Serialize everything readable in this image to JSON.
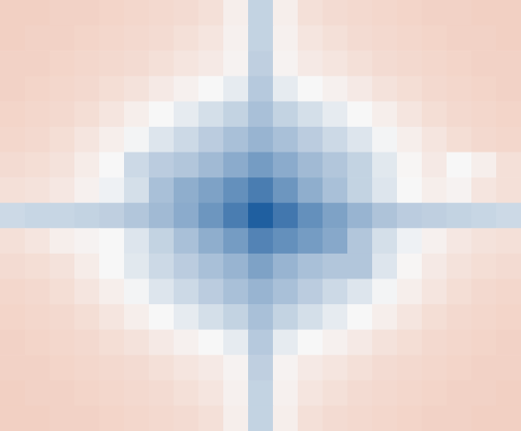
{
  "chart_data": {
    "type": "heatmap",
    "tick_labels": false,
    "xlim": [
      0,
      21
    ],
    "ylim": [
      0,
      17
    ],
    "cells": [
      [
        0.33,
        0.33,
        0.34,
        0.34,
        0.35,
        0.36,
        0.37,
        0.38,
        0.4,
        0.46,
        0.62,
        0.46,
        0.4,
        0.38,
        0.37,
        0.36,
        0.35,
        0.34,
        0.34,
        0.33,
        0.33
      ],
      [
        0.33,
        0.34,
        0.34,
        0.35,
        0.36,
        0.37,
        0.38,
        0.4,
        0.42,
        0.47,
        0.62,
        0.47,
        0.42,
        0.4,
        0.38,
        0.37,
        0.36,
        0.35,
        0.34,
        0.34,
        0.33
      ],
      [
        0.34,
        0.34,
        0.35,
        0.36,
        0.37,
        0.38,
        0.4,
        0.42,
        0.44,
        0.48,
        0.63,
        0.48,
        0.44,
        0.42,
        0.4,
        0.38,
        0.37,
        0.36,
        0.35,
        0.34,
        0.34
      ],
      [
        0.34,
        0.35,
        0.36,
        0.37,
        0.39,
        0.41,
        0.44,
        0.47,
        0.5,
        0.54,
        0.65,
        0.54,
        0.5,
        0.47,
        0.44,
        0.41,
        0.39,
        0.37,
        0.36,
        0.35,
        0.34
      ],
      [
        0.35,
        0.36,
        0.37,
        0.39,
        0.42,
        0.46,
        0.5,
        0.54,
        0.58,
        0.62,
        0.68,
        0.62,
        0.58,
        0.54,
        0.5,
        0.46,
        0.42,
        0.39,
        0.37,
        0.36,
        0.35
      ],
      [
        0.36,
        0.37,
        0.39,
        0.42,
        0.46,
        0.51,
        0.56,
        0.6,
        0.64,
        0.68,
        0.72,
        0.68,
        0.64,
        0.6,
        0.56,
        0.51,
        0.46,
        0.42,
        0.39,
        0.37,
        0.36
      ],
      [
        0.38,
        0.39,
        0.41,
        0.45,
        0.5,
        0.6,
        0.64,
        0.66,
        0.7,
        0.75,
        0.8,
        0.75,
        0.7,
        0.66,
        0.62,
        0.55,
        0.49,
        0.44,
        0.5,
        0.46,
        0.4
      ],
      [
        0.4,
        0.41,
        0.43,
        0.47,
        0.52,
        0.58,
        0.68,
        0.74,
        0.78,
        0.84,
        0.9,
        0.82,
        0.74,
        0.68,
        0.62,
        0.56,
        0.5,
        0.46,
        0.48,
        0.42,
        0.4
      ],
      [
        0.6,
        0.61,
        0.61,
        0.62,
        0.63,
        0.66,
        0.7,
        0.75,
        0.82,
        0.9,
        1.0,
        0.92,
        0.84,
        0.78,
        0.72,
        0.67,
        0.64,
        0.63,
        0.62,
        0.61,
        0.6
      ],
      [
        0.4,
        0.42,
        0.46,
        0.48,
        0.5,
        0.56,
        0.62,
        0.68,
        0.74,
        0.8,
        0.88,
        0.84,
        0.8,
        0.76,
        0.66,
        0.58,
        0.52,
        0.47,
        0.43,
        0.41,
        0.4
      ],
      [
        0.38,
        0.39,
        0.41,
        0.45,
        0.5,
        0.55,
        0.6,
        0.64,
        0.68,
        0.72,
        0.78,
        0.72,
        0.68,
        0.66,
        0.66,
        0.56,
        0.49,
        0.44,
        0.41,
        0.39,
        0.38
      ],
      [
        0.36,
        0.37,
        0.39,
        0.42,
        0.46,
        0.51,
        0.56,
        0.6,
        0.64,
        0.68,
        0.72,
        0.68,
        0.64,
        0.6,
        0.56,
        0.51,
        0.46,
        0.42,
        0.39,
        0.37,
        0.36
      ],
      [
        0.35,
        0.36,
        0.37,
        0.39,
        0.42,
        0.46,
        0.5,
        0.54,
        0.58,
        0.62,
        0.68,
        0.62,
        0.58,
        0.54,
        0.5,
        0.46,
        0.42,
        0.39,
        0.37,
        0.36,
        0.35
      ],
      [
        0.34,
        0.35,
        0.36,
        0.37,
        0.39,
        0.41,
        0.44,
        0.47,
        0.5,
        0.54,
        0.65,
        0.54,
        0.5,
        0.47,
        0.44,
        0.41,
        0.39,
        0.37,
        0.36,
        0.35,
        0.34
      ],
      [
        0.34,
        0.34,
        0.35,
        0.36,
        0.37,
        0.38,
        0.4,
        0.42,
        0.44,
        0.48,
        0.63,
        0.48,
        0.44,
        0.42,
        0.4,
        0.38,
        0.37,
        0.36,
        0.35,
        0.34,
        0.34
      ],
      [
        0.33,
        0.34,
        0.34,
        0.35,
        0.36,
        0.37,
        0.38,
        0.4,
        0.42,
        0.47,
        0.62,
        0.47,
        0.42,
        0.4,
        0.38,
        0.37,
        0.36,
        0.35,
        0.34,
        0.34,
        0.33
      ],
      [
        0.33,
        0.33,
        0.34,
        0.34,
        0.35,
        0.36,
        0.37,
        0.38,
        0.4,
        0.46,
        0.62,
        0.46,
        0.4,
        0.38,
        0.37,
        0.36,
        0.35,
        0.34,
        0.34,
        0.33,
        0.33
      ]
    ]
  }
}
